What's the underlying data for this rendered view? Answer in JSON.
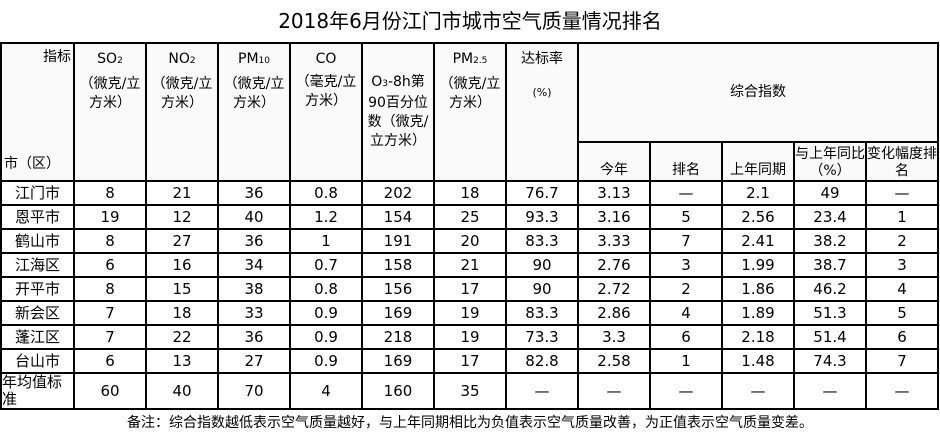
{
  "title": "2018年6月份江门市城市空气质量情况排名",
  "header": {
    "corner_top": "指标",
    "corner_bottom": "市（区）",
    "so2": {
      "name": "SO",
      "sub": "2",
      "unit": "（微克/立方米）"
    },
    "no2": {
      "name": "NO",
      "sub": "2",
      "unit": "（微克/立方米）"
    },
    "pm10": {
      "name": "PM",
      "sub": "10",
      "unit": "（微克/立方米）"
    },
    "co": {
      "name": "CO",
      "unit": "（毫克/立方米）"
    },
    "o3": {
      "name": "O",
      "sub": "3",
      "rest": "-8h第90百分位数（微克/立方米）"
    },
    "pm25": {
      "name": "PM",
      "sub": "2.5",
      "unit": "（微克/立方米）"
    },
    "rate": {
      "name": "达标率",
      "unit": "(%)"
    },
    "composite": "综合指数",
    "composite_cols": [
      "今年",
      "排名",
      "上年同期",
      "与上年同比（%）",
      "变化幅度排名"
    ]
  },
  "rows": [
    [
      "江门市",
      "8",
      "21",
      "36",
      "0.8",
      "202",
      "18",
      "76.7",
      "3.13",
      "—",
      "2.1",
      "49",
      "—"
    ],
    [
      "恩平市",
      "19",
      "12",
      "40",
      "1.2",
      "154",
      "25",
      "93.3",
      "3.16",
      "5",
      "2.56",
      "23.4",
      "1"
    ],
    [
      "鹤山市",
      "8",
      "27",
      "36",
      "1",
      "191",
      "20",
      "83.3",
      "3.33",
      "7",
      "2.41",
      "38.2",
      "2"
    ],
    [
      "江海区",
      "6",
      "16",
      "34",
      "0.7",
      "158",
      "21",
      "90",
      "2.76",
      "3",
      "1.99",
      "38.7",
      "3"
    ],
    [
      "开平市",
      "8",
      "15",
      "38",
      "0.8",
      "156",
      "17",
      "90",
      "2.72",
      "2",
      "1.86",
      "46.2",
      "4"
    ],
    [
      "新会区",
      "7",
      "18",
      "33",
      "0.9",
      "169",
      "19",
      "83.3",
      "2.86",
      "4",
      "1.89",
      "51.3",
      "5"
    ],
    [
      "蓬江区",
      "7",
      "22",
      "36",
      "0.9",
      "218",
      "19",
      "73.3",
      "3.3",
      "6",
      "2.18",
      "51.4",
      "6"
    ],
    [
      "台山市",
      "6",
      "13",
      "27",
      "0.9",
      "169",
      "17",
      "82.8",
      "2.58",
      "1",
      "1.48",
      "74.3",
      "7"
    ],
    [
      "年均值标准",
      "60",
      "40",
      "70",
      "4",
      "160",
      "35",
      "—",
      "—",
      "—",
      "—",
      "—",
      "—"
    ]
  ],
  "note": "备注：综合指数越低表示空气质量越好，与上年同期相比为负值表示空气质量改善，为正值表示空气质量变差。"
}
